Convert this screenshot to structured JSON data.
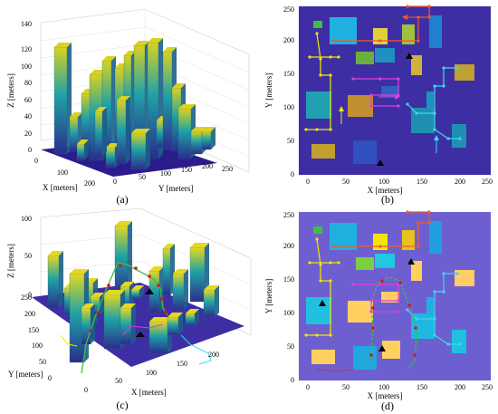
{
  "panels": [
    {
      "caption": "(a)",
      "x_axis_label": "X [meters]",
      "y_axis_label": "Y [meters]",
      "z_axis_label": "Z [meters]",
      "z_ticks": [
        "0",
        "20",
        "40",
        "60",
        "80",
        "100",
        "120",
        "140"
      ],
      "x_ticks": [
        "0",
        "100",
        "200"
      ],
      "y_ticks": [
        "0",
        "50",
        "100",
        "150",
        "200",
        "250"
      ]
    },
    {
      "caption": "(b)",
      "x_axis_label": "X [meters]",
      "y_axis_label": "Y [meters]",
      "x_ticks": [
        "0",
        "50",
        "100",
        "150",
        "200",
        "250"
      ],
      "y_ticks": [
        "0",
        "50",
        "100",
        "150",
        "200",
        "250"
      ]
    },
    {
      "caption": "(c)",
      "x_axis_label": "X [meters]",
      "y_axis_label": "Y [meters]",
      "z_axis_label": "Z [meters]",
      "z_ticks": [
        "0",
        "50",
        "100"
      ],
      "x_ticks": [
        "0",
        "50",
        "100",
        "150",
        "200"
      ],
      "y_ticks": [
        "0",
        "50",
        "100",
        "150",
        "200",
        "250"
      ]
    },
    {
      "caption": "(d)",
      "x_axis_label": "X [meters]",
      "y_axis_label": "Y [meters]",
      "x_ticks": [
        "0",
        "50",
        "100",
        "150",
        "200",
        "250"
      ],
      "y_ticks": [
        "0",
        "50",
        "100",
        "150",
        "200",
        "250"
      ]
    }
  ],
  "colors": {
    "map_bg_b": "#3d2fa3",
    "map_bg_d": "#6e5fd0",
    "path_yellow": "#f2e600",
    "path_orange": "#f05a28",
    "path_magenta": "#e03ce0",
    "path_cyan": "#3fd6f0",
    "path_green": "#3fbf3f",
    "path_red": "#d01818"
  }
}
